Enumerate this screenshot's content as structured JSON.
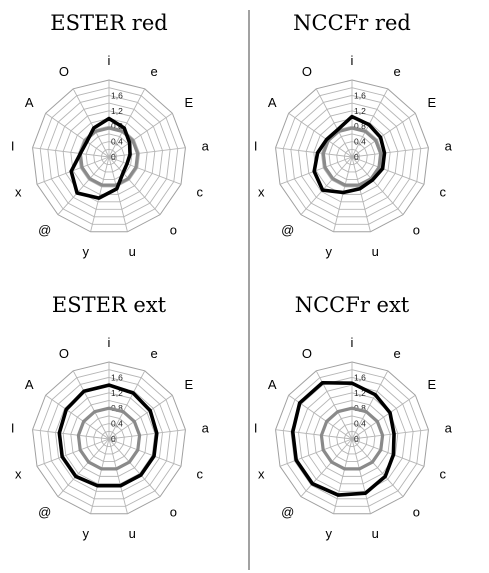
{
  "chart_data": [
    {
      "type": "radar",
      "title": "ESTER red",
      "axes": [
        "i",
        "e",
        "E",
        "a",
        "c",
        "o",
        "u",
        "y",
        "@",
        "x",
        "I",
        "A",
        "O"
      ],
      "radial_ticks": [
        "0",
        "0,4",
        "0,8",
        "1,2",
        "1,6"
      ],
      "rlim": [
        0,
        2.0
      ],
      "series": [
        {
          "color": "#8a8a8a",
          "values": [
            0.75,
            0.75,
            0.75,
            0.75,
            0.75,
            0.75,
            0.75,
            0.75,
            0.75,
            0.75,
            0.75,
            0.75,
            0.75
          ]
        },
        {
          "color": "#000000",
          "values": [
            1.0,
            0.85,
            0.65,
            0.55,
            0.5,
            0.55,
            0.85,
            1.1,
            1.25,
            1.05,
            0.75,
            0.7,
            0.85
          ]
        }
      ]
    },
    {
      "type": "radar",
      "title": "NCCFr red",
      "axes": [
        "i",
        "e",
        "E",
        "a",
        "c",
        "o",
        "u",
        "y",
        "@",
        "x",
        "I",
        "A",
        "O"
      ],
      "radial_ticks": [
        "0",
        "0,4",
        "0,8",
        "1,2",
        "1,6"
      ],
      "rlim": [
        0,
        2.0
      ],
      "series": [
        {
          "color": "#8a8a8a",
          "values": [
            0.75,
            0.75,
            0.75,
            0.75,
            0.75,
            0.75,
            0.75,
            0.75,
            0.75,
            0.75,
            0.75,
            0.75,
            0.75
          ]
        },
        {
          "color": "#000000",
          "values": [
            1.05,
            0.95,
            0.9,
            0.85,
            0.85,
            0.8,
            0.85,
            0.95,
            1.15,
            1.05,
            0.9,
            0.8,
            0.8
          ]
        }
      ]
    },
    {
      "type": "radar",
      "title": "ESTER ext",
      "axes": [
        "i",
        "e",
        "E",
        "a",
        "c",
        "o",
        "u",
        "y",
        "@",
        "x",
        "I",
        "A",
        "O"
      ],
      "radial_ticks": [
        "0",
        "0,4",
        "0,8",
        "1,2",
        "1,6"
      ],
      "rlim": [
        0,
        2.0
      ],
      "series": [
        {
          "color": "#8a8a8a",
          "values": [
            0.8,
            0.8,
            0.8,
            0.8,
            0.8,
            0.8,
            0.8,
            0.8,
            0.8,
            0.8,
            0.8,
            0.8,
            0.8
          ]
        },
        {
          "color": "#000000",
          "values": [
            1.4,
            1.35,
            1.3,
            1.25,
            1.25,
            1.25,
            1.25,
            1.25,
            1.3,
            1.3,
            1.3,
            1.35,
            1.4
          ]
        }
      ]
    },
    {
      "type": "radar",
      "title": "NCCFr ext",
      "axes": [
        "i",
        "e",
        "E",
        "a",
        "c",
        "o",
        "u",
        "y",
        "@",
        "x",
        "I",
        "A",
        "O"
      ],
      "radial_ticks": [
        "0",
        "0,4",
        "0,8",
        "1,2",
        "1,6"
      ],
      "rlim": [
        0,
        2.0
      ],
      "series": [
        {
          "color": "#8a8a8a",
          "values": [
            0.8,
            0.8,
            0.8,
            0.8,
            0.8,
            0.8,
            0.8,
            0.8,
            0.8,
            0.8,
            0.8,
            0.8,
            0.8
          ]
        },
        {
          "color": "#000000",
          "values": [
            1.45,
            1.3,
            1.2,
            1.1,
            1.15,
            1.3,
            1.45,
            1.5,
            1.55,
            1.55,
            1.55,
            1.65,
            1.65
          ]
        }
      ]
    }
  ]
}
